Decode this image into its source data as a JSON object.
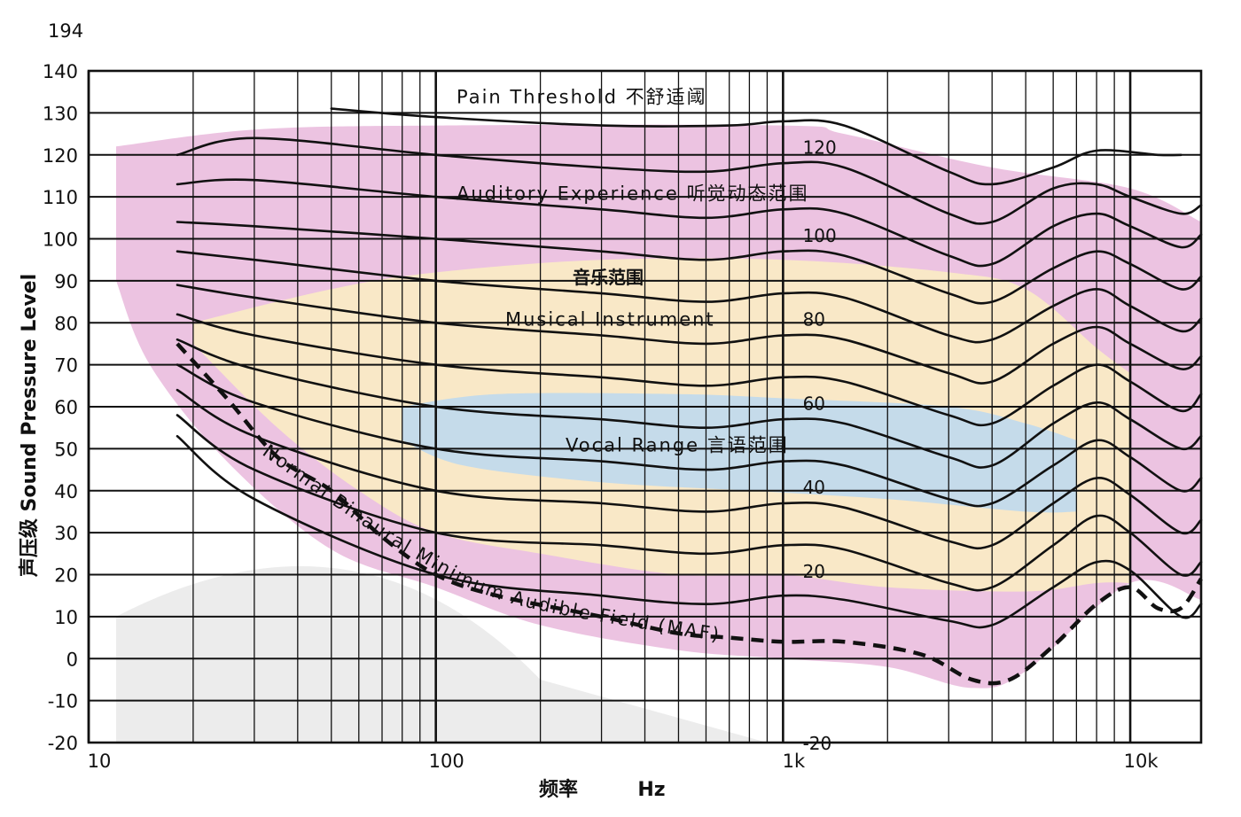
{
  "chart_data": {
    "type": "line",
    "title": "",
    "xlabel": "频率",
    "xunit": "Hz",
    "ylabel": "声压级 Sound Pressure Level",
    "xscale": "log",
    "xlim": [
      10,
      16000
    ],
    "ylim": [
      -20,
      140
    ],
    "grid": true,
    "ytick_top_label": "194",
    "yticks": [
      "140",
      "130",
      "120",
      "110",
      "100",
      "90",
      "80",
      "70",
      "60",
      "50",
      "40",
      "30",
      "20",
      "10",
      "0",
      "-10",
      "-20"
    ],
    "xticks": [
      {
        "value": 10,
        "label": "10"
      },
      {
        "value": 100,
        "label": "100"
      },
      {
        "value": 1000,
        "label": "1k"
      },
      {
        "value": 10000,
        "label": "10k"
      }
    ],
    "region_labels": [
      {
        "text": "Pain Threshold 不舒适阈",
        "x": 330,
        "y": 136
      },
      {
        "text": "Auditory Experience 听觉动态范围",
        "x": 300,
        "y": 111
      },
      {
        "text": "音乐范围",
        "x": 400,
        "y": 90
      },
      {
        "text": "Musical Instrument",
        "x": 340,
        "y": 79
      },
      {
        "text": "Vocal Range 言语范围",
        "x": 330,
        "y": 49
      }
    ],
    "phon_labels": [
      {
        "text": "120",
        "x": 1350,
        "y": 122
      },
      {
        "text": "100",
        "x": 1350,
        "y": 101
      },
      {
        "text": "80",
        "x": 1350,
        "y": 81
      },
      {
        "text": "60",
        "x": 1350,
        "y": 61
      },
      {
        "text": "40",
        "x": 1350,
        "y": 41
      },
      {
        "text": "20",
        "x": 1350,
        "y": 21
      },
      {
        "text": "-20",
        "x": 1350,
        "y": -20
      }
    ],
    "maf_label": "Normal Binaural Minimum Audible Field (MAF)",
    "regions": [
      {
        "name": "auditory",
        "color": "#e9b9dc",
        "upper": [
          [
            12,
            122
          ],
          [
            30,
            126
          ],
          [
            100,
            127
          ],
          [
            1000,
            127
          ],
          [
            1500,
            125
          ],
          [
            4000,
            117
          ],
          [
            10000,
            112
          ],
          [
            16000,
            104
          ]
        ],
        "lower": [
          [
            16000,
            14
          ],
          [
            10000,
            18
          ],
          [
            5000,
            -3
          ],
          [
            3500,
            -7
          ],
          [
            2000,
            -2
          ],
          [
            1000,
            0
          ],
          [
            500,
            2
          ],
          [
            200,
            8
          ],
          [
            100,
            17
          ],
          [
            50,
            26
          ],
          [
            25,
            47
          ],
          [
            15,
            70
          ],
          [
            12,
            90
          ]
        ]
      },
      {
        "name": "music",
        "color": "#fbeec2",
        "upper": [
          [
            20,
            80
          ],
          [
            50,
            88
          ],
          [
            100,
            92
          ],
          [
            300,
            95
          ],
          [
            1000,
            95
          ],
          [
            3000,
            92
          ],
          [
            5000,
            88
          ],
          [
            8000,
            74
          ],
          [
            10000,
            68
          ]
        ],
        "lower": [
          [
            10000,
            18
          ],
          [
            8000,
            18
          ],
          [
            5000,
            16
          ],
          [
            2000,
            17
          ],
          [
            1000,
            20
          ],
          [
            500,
            20
          ],
          [
            200,
            25
          ],
          [
            100,
            30
          ],
          [
            60,
            40
          ],
          [
            35,
            55
          ],
          [
            20,
            75
          ]
        ]
      },
      {
        "name": "vocal",
        "color": "#bcd8f0",
        "upper": [
          [
            80,
            60
          ],
          [
            150,
            63
          ],
          [
            500,
            63
          ],
          [
            1000,
            62
          ],
          [
            3000,
            60
          ],
          [
            5000,
            56
          ],
          [
            7000,
            52
          ]
        ],
        "lower": [
          [
            7000,
            35
          ],
          [
            5000,
            35
          ],
          [
            2000,
            38
          ],
          [
            800,
            40
          ],
          [
            300,
            42
          ],
          [
            120,
            46
          ],
          [
            80,
            52
          ]
        ]
      }
    ],
    "series": [
      {
        "values": [
          [
            50,
            131
          ],
          [
            100,
            129
          ],
          [
            300,
            127
          ],
          [
            700,
            127
          ],
          [
            1000,
            128
          ],
          [
            1500,
            127
          ],
          [
            3000,
            116
          ],
          [
            4000,
            113
          ],
          [
            6000,
            117
          ],
          [
            8000,
            121
          ],
          [
            12000,
            120
          ],
          [
            14000,
            120
          ]
        ]
      },
      {
        "values": [
          [
            18,
            120
          ],
          [
            30,
            124
          ],
          [
            100,
            120
          ],
          [
            300,
            117
          ],
          [
            600,
            116
          ],
          [
            1000,
            118
          ],
          [
            1500,
            117
          ],
          [
            3000,
            106
          ],
          [
            4000,
            104
          ],
          [
            6000,
            112
          ],
          [
            8000,
            113
          ],
          [
            10000,
            110
          ],
          [
            14000,
            106
          ],
          [
            16000,
            108
          ]
        ]
      },
      {
        "values": [
          [
            18,
            113
          ],
          [
            30,
            114
          ],
          [
            100,
            110
          ],
          [
            300,
            107
          ],
          [
            600,
            105
          ],
          [
            1000,
            107
          ],
          [
            1500,
            106
          ],
          [
            3000,
            96
          ],
          [
            4000,
            94
          ],
          [
            6000,
            103
          ],
          [
            8000,
            106
          ],
          [
            10000,
            103
          ],
          [
            14000,
            98
          ],
          [
            16000,
            101
          ]
        ]
      },
      {
        "values": [
          [
            18,
            104
          ],
          [
            30,
            103
          ],
          [
            100,
            100
          ],
          [
            300,
            97
          ],
          [
            600,
            95
          ],
          [
            1000,
            97
          ],
          [
            1500,
            96
          ],
          [
            3000,
            87
          ],
          [
            4000,
            85
          ],
          [
            6000,
            93
          ],
          [
            8000,
            97
          ],
          [
            10000,
            94
          ],
          [
            14000,
            88
          ],
          [
            16000,
            91
          ]
        ]
      },
      {
        "values": [
          [
            18,
            97
          ],
          [
            30,
            95
          ],
          [
            100,
            90
          ],
          [
            300,
            87
          ],
          [
            600,
            85
          ],
          [
            1000,
            87
          ],
          [
            1500,
            86
          ],
          [
            3000,
            77
          ],
          [
            4000,
            76
          ],
          [
            6000,
            84
          ],
          [
            8000,
            88
          ],
          [
            10000,
            84
          ],
          [
            14000,
            78
          ],
          [
            16000,
            81
          ]
        ]
      },
      {
        "values": [
          [
            18,
            89
          ],
          [
            30,
            86
          ],
          [
            100,
            80
          ],
          [
            300,
            77
          ],
          [
            600,
            75
          ],
          [
            1000,
            77
          ],
          [
            1500,
            76
          ],
          [
            3000,
            68
          ],
          [
            4000,
            66
          ],
          [
            6000,
            75
          ],
          [
            8000,
            79
          ],
          [
            10000,
            75
          ],
          [
            14000,
            69
          ],
          [
            16000,
            72
          ]
        ]
      },
      {
        "values": [
          [
            18,
            82
          ],
          [
            30,
            77
          ],
          [
            100,
            70
          ],
          [
            300,
            67
          ],
          [
            600,
            65
          ],
          [
            1000,
            67
          ],
          [
            1500,
            66
          ],
          [
            3000,
            58
          ],
          [
            4000,
            56
          ],
          [
            6000,
            65
          ],
          [
            8000,
            70
          ],
          [
            10000,
            66
          ],
          [
            14000,
            59
          ],
          [
            16000,
            63
          ]
        ]
      },
      {
        "values": [
          [
            18,
            76
          ],
          [
            30,
            69
          ],
          [
            100,
            60
          ],
          [
            300,
            57
          ],
          [
            600,
            55
          ],
          [
            1000,
            57
          ],
          [
            1500,
            56
          ],
          [
            3000,
            48
          ],
          [
            4000,
            46
          ],
          [
            6000,
            56
          ],
          [
            8000,
            61
          ],
          [
            10000,
            57
          ],
          [
            14000,
            50
          ],
          [
            16000,
            53
          ]
        ]
      },
      {
        "values": [
          [
            18,
            70
          ],
          [
            30,
            61
          ],
          [
            100,
            50
          ],
          [
            300,
            47
          ],
          [
            600,
            45
          ],
          [
            1000,
            47
          ],
          [
            1500,
            46
          ],
          [
            3000,
            38
          ],
          [
            4000,
            37
          ],
          [
            6000,
            46
          ],
          [
            8000,
            52
          ],
          [
            10000,
            48
          ],
          [
            14000,
            40
          ],
          [
            16000,
            43
          ]
        ]
      },
      {
        "values": [
          [
            18,
            64
          ],
          [
            30,
            53
          ],
          [
            100,
            40
          ],
          [
            300,
            37
          ],
          [
            600,
            35
          ],
          [
            1000,
            37
          ],
          [
            1500,
            36
          ],
          [
            3000,
            28
          ],
          [
            4000,
            27
          ],
          [
            6000,
            37
          ],
          [
            8000,
            43
          ],
          [
            10000,
            39
          ],
          [
            14000,
            30
          ],
          [
            16000,
            33
          ]
        ]
      },
      {
        "values": [
          [
            18,
            58
          ],
          [
            30,
            45
          ],
          [
            100,
            30
          ],
          [
            300,
            27
          ],
          [
            600,
            25
          ],
          [
            1000,
            27
          ],
          [
            1500,
            26
          ],
          [
            3000,
            18
          ],
          [
            4000,
            17
          ],
          [
            6000,
            27
          ],
          [
            8000,
            34
          ],
          [
            10000,
            30
          ],
          [
            14000,
            20
          ],
          [
            16000,
            23
          ]
        ]
      },
      {
        "values": [
          [
            18,
            53
          ],
          [
            30,
            38
          ],
          [
            100,
            20
          ],
          [
            300,
            15
          ],
          [
            600,
            13
          ],
          [
            1000,
            15
          ],
          [
            1500,
            14
          ],
          [
            3000,
            9
          ],
          [
            4000,
            8
          ],
          [
            6000,
            17
          ],
          [
            8000,
            23
          ],
          [
            10000,
            21
          ],
          [
            14000,
            10
          ],
          [
            16000,
            13
          ]
        ]
      }
    ],
    "maf": [
      [
        18,
        75
      ],
      [
        25,
        62
      ],
      [
        35,
        48
      ],
      [
        50,
        40
      ],
      [
        70,
        29
      ],
      [
        100,
        20
      ],
      [
        150,
        15
      ],
      [
        300,
        10
      ],
      [
        500,
        6
      ],
      [
        700,
        5
      ],
      [
        1000,
        4
      ],
      [
        1500,
        4
      ],
      [
        2500,
        1
      ],
      [
        3500,
        -5
      ],
      [
        4500,
        -5
      ],
      [
        6000,
        3
      ],
      [
        8000,
        13
      ],
      [
        10000,
        17
      ],
      [
        12000,
        12
      ],
      [
        14000,
        12
      ],
      [
        16000,
        19
      ]
    ]
  }
}
